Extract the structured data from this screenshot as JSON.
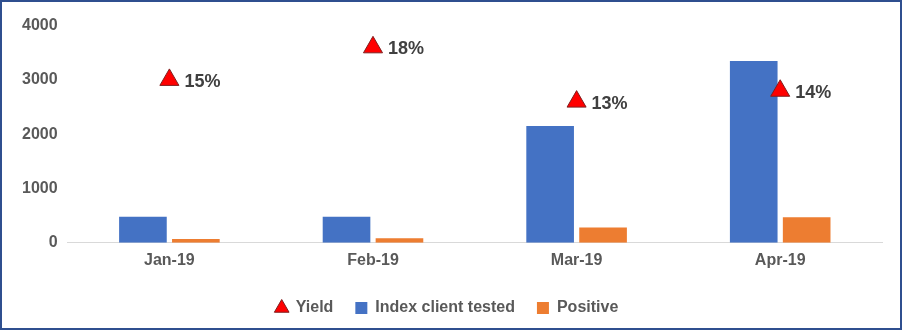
{
  "chart_data": {
    "type": "bar",
    "categories": [
      "Jan-19",
      "Feb-19",
      "Mar-19",
      "Apr-19"
    ],
    "series": [
      {
        "name": "Index client tested",
        "color": "#4472c4",
        "values": [
          480,
          480,
          2150,
          3350
        ]
      },
      {
        "name": "Positive",
        "color": "#ed7d31",
        "values": [
          70,
          85,
          280,
          470
        ]
      },
      {
        "name": "Yield",
        "color": "#ff0000",
        "type": "scatter",
        "marker": "triangle",
        "axis": "y2",
        "values": [
          15,
          18,
          13,
          14
        ],
        "value_labels": [
          "15%",
          "18%",
          "13%",
          "14%"
        ],
        "data_labels": true
      }
    ],
    "ylim": [
      0,
      4000
    ],
    "yticks": [
      0,
      1000,
      2000,
      3000,
      4000
    ],
    "y2lim": [
      0,
      20
    ],
    "grid": false,
    "legend": "bottom"
  }
}
